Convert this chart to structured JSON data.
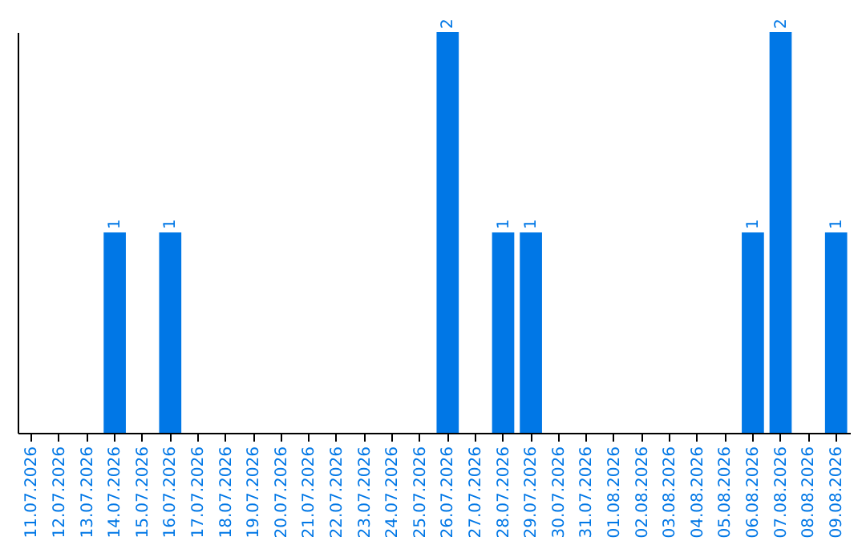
{
  "chart_data": {
    "type": "bar",
    "categories": [
      "11.07.2026",
      "12.07.2026",
      "13.07.2026",
      "14.07.2026",
      "15.07.2026",
      "16.07.2026",
      "17.07.2026",
      "18.07.2026",
      "19.07.2026",
      "20.07.2026",
      "21.07.2026",
      "22.07.2026",
      "23.07.2026",
      "24.07.2026",
      "25.07.2026",
      "26.07.2026",
      "27.07.2026",
      "28.07.2026",
      "29.07.2026",
      "30.07.2026",
      "31.07.2026",
      "01.08.2026",
      "02.08.2026",
      "03.08.2026",
      "04.08.2026",
      "05.08.2026",
      "06.08.2026",
      "07.08.2026",
      "08.08.2026",
      "09.08.2026"
    ],
    "values": [
      0,
      0,
      0,
      1,
      0,
      1,
      0,
      0,
      0,
      0,
      0,
      0,
      0,
      0,
      0,
      2,
      0,
      1,
      1,
      0,
      0,
      0,
      0,
      0,
      0,
      0,
      1,
      2,
      0,
      1
    ],
    "color": "#0077e6",
    "value_labels": [
      null,
      null,
      null,
      "1",
      null,
      "1",
      null,
      null,
      null,
      null,
      null,
      null,
      null,
      null,
      null,
      "2",
      null,
      "1",
      "1",
      null,
      null,
      null,
      null,
      null,
      null,
      null,
      "1",
      "2",
      null,
      "1"
    ],
    "grid": false,
    "tick_labels": "x"
  }
}
